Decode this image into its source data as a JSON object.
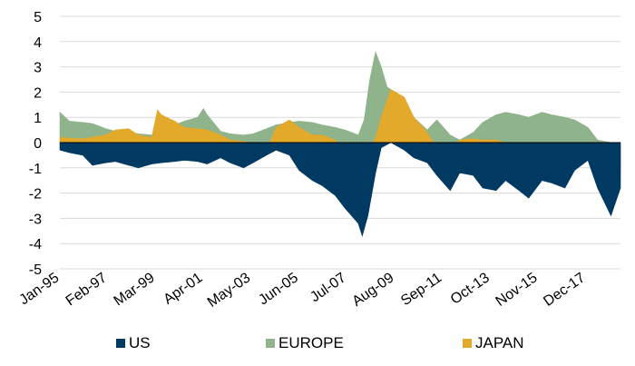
{
  "chart_data": {
    "type": "area",
    "title": "",
    "xlabel": "",
    "ylabel": "",
    "ylim": [
      -5,
      5
    ],
    "yticks": [
      5,
      4,
      3,
      2,
      1,
      0,
      -1,
      -2,
      -3,
      -4,
      -5
    ],
    "xlim": [
      "1995-01",
      "2019-06"
    ],
    "xticks": [
      "Jan-95",
      "Feb-97",
      "Mar-99",
      "Apr-01",
      "May-03",
      "Jun-05",
      "Jul-07",
      "Aug-09",
      "Sep-11",
      "Oct-13",
      "Nov-15",
      "Dec-17"
    ],
    "grid": true,
    "legend_position": "bottom",
    "series": [
      {
        "name": "EUROPE",
        "color": "#8fb38a",
        "points": [
          [
            "1995-01",
            1.2
          ],
          [
            "1995-06",
            0.85
          ],
          [
            "1996-01",
            0.8
          ],
          [
            "1996-06",
            0.75
          ],
          [
            "1997-01",
            0.55
          ],
          [
            "1997-06",
            0.45
          ],
          [
            "1998-01",
            0.4
          ],
          [
            "1998-06",
            0.35
          ],
          [
            "1999-01",
            0.3
          ],
          [
            "1999-06",
            0.55
          ],
          [
            "2000-01",
            0.7
          ],
          [
            "2000-06",
            0.85
          ],
          [
            "2001-01",
            1.0
          ],
          [
            "2001-04",
            1.35
          ],
          [
            "2001-06",
            1.1
          ],
          [
            "2002-01",
            0.45
          ],
          [
            "2002-06",
            0.35
          ],
          [
            "2003-01",
            0.3
          ],
          [
            "2003-06",
            0.35
          ],
          [
            "2004-01",
            0.55
          ],
          [
            "2004-06",
            0.7
          ],
          [
            "2005-01",
            0.8
          ],
          [
            "2005-06",
            0.85
          ],
          [
            "2006-01",
            0.8
          ],
          [
            "2006-06",
            0.7
          ],
          [
            "2007-01",
            0.6
          ],
          [
            "2007-06",
            0.5
          ],
          [
            "2008-01",
            0.3
          ],
          [
            "2008-04",
            0.9
          ],
          [
            "2008-07",
            2.5
          ],
          [
            "2008-10",
            3.6
          ],
          [
            "2009-01",
            3.0
          ],
          [
            "2009-04",
            2.2
          ],
          [
            "2009-08",
            2.0
          ],
          [
            "2010-01",
            1.6
          ],
          [
            "2010-06",
            1.0
          ],
          [
            "2011-01",
            0.5
          ],
          [
            "2011-06",
            0.9
          ],
          [
            "2012-01",
            0.3
          ],
          [
            "2012-06",
            0.1
          ],
          [
            "2013-01",
            0.4
          ],
          [
            "2013-06",
            0.8
          ],
          [
            "2014-01",
            1.1
          ],
          [
            "2014-06",
            1.2
          ],
          [
            "2015-01",
            1.1
          ],
          [
            "2015-06",
            1.0
          ],
          [
            "2016-01",
            1.2
          ],
          [
            "2016-06",
            1.1
          ],
          [
            "2017-01",
            1.0
          ],
          [
            "2017-06",
            0.9
          ],
          [
            "2018-01",
            0.6
          ],
          [
            "2018-06",
            0.1
          ],
          [
            "2019-01",
            0.0
          ],
          [
            "2019-06",
            0.0
          ]
        ]
      },
      {
        "name": "JAPAN",
        "color": "#e3a92b",
        "points": [
          [
            "1995-01",
            0.2
          ],
          [
            "1996-01",
            0.15
          ],
          [
            "1997-01",
            0.3
          ],
          [
            "1997-06",
            0.5
          ],
          [
            "1998-01",
            0.55
          ],
          [
            "1998-06",
            0.3
          ],
          [
            "1999-01",
            0.2
          ],
          [
            "1999-04",
            1.3
          ],
          [
            "1999-06",
            1.1
          ],
          [
            "2000-01",
            0.85
          ],
          [
            "2000-06",
            0.6
          ],
          [
            "2001-01",
            0.55
          ],
          [
            "2001-06",
            0.5
          ],
          [
            "2002-01",
            0.3
          ],
          [
            "2002-06",
            0.1
          ],
          [
            "2003-01",
            0.05
          ],
          [
            "2003-06",
            -0.05
          ],
          [
            "2004-01",
            -0.3
          ],
          [
            "2004-06",
            0.6
          ],
          [
            "2005-01",
            0.9
          ],
          [
            "2005-06",
            0.6
          ],
          [
            "2006-01",
            0.3
          ],
          [
            "2006-06",
            0.3
          ],
          [
            "2007-01",
            0.1
          ],
          [
            "2007-06",
            -0.3
          ],
          [
            "2008-01",
            -0.6
          ],
          [
            "2008-06",
            -0.4
          ],
          [
            "2008-10",
            0.2
          ],
          [
            "2009-01",
            1.0
          ],
          [
            "2009-06",
            2.1
          ],
          [
            "2010-01",
            1.8
          ],
          [
            "2010-06",
            1.0
          ],
          [
            "2011-01",
            0.4
          ],
          [
            "2011-06",
            -0.2
          ],
          [
            "2012-01",
            -0.3
          ],
          [
            "2012-06",
            0.1
          ],
          [
            "2013-01",
            0.15
          ],
          [
            "2013-06",
            0.1
          ],
          [
            "2014-01",
            0.1
          ],
          [
            "2014-06",
            0.0
          ],
          [
            "2015-01",
            -0.3
          ],
          [
            "2015-06",
            -0.6
          ],
          [
            "2016-01",
            -0.9
          ],
          [
            "2016-06",
            -0.8
          ],
          [
            "2017-01",
            -0.6
          ],
          [
            "2017-06",
            -0.4
          ],
          [
            "2018-01",
            -0.5
          ],
          [
            "2018-06",
            -0.7
          ],
          [
            "2019-01",
            -0.9
          ],
          [
            "2019-06",
            -1.2
          ]
        ]
      },
      {
        "name": "US",
        "color": "#003a63",
        "points": [
          [
            "1995-01",
            -0.3
          ],
          [
            "1995-06",
            -0.4
          ],
          [
            "1996-01",
            -0.5
          ],
          [
            "1996-06",
            -0.9
          ],
          [
            "1997-01",
            -0.8
          ],
          [
            "1997-06",
            -0.75
          ],
          [
            "1998-01",
            -0.9
          ],
          [
            "1998-06",
            -1.0
          ],
          [
            "1999-01",
            -0.85
          ],
          [
            "1999-06",
            -0.8
          ],
          [
            "2000-01",
            -0.75
          ],
          [
            "2000-06",
            -0.7
          ],
          [
            "2001-01",
            -0.75
          ],
          [
            "2001-06",
            -0.85
          ],
          [
            "2002-01",
            -0.6
          ],
          [
            "2002-06",
            -0.8
          ],
          [
            "2003-01",
            -1.0
          ],
          [
            "2003-06",
            -0.8
          ],
          [
            "2004-01",
            -0.5
          ],
          [
            "2004-06",
            -0.3
          ],
          [
            "2005-01",
            -0.5
          ],
          [
            "2005-06",
            -1.1
          ],
          [
            "2006-01",
            -1.5
          ],
          [
            "2006-06",
            -1.7
          ],
          [
            "2007-01",
            -2.1
          ],
          [
            "2007-06",
            -2.6
          ],
          [
            "2008-01",
            -3.2
          ],
          [
            "2008-03",
            -3.7
          ],
          [
            "2008-06",
            -2.9
          ],
          [
            "2008-10",
            -1.2
          ],
          [
            "2009-01",
            -0.2
          ],
          [
            "2009-06",
            0.0
          ],
          [
            "2010-01",
            -0.3
          ],
          [
            "2010-06",
            -0.6
          ],
          [
            "2011-01",
            -0.8
          ],
          [
            "2011-06",
            -1.3
          ],
          [
            "2012-01",
            -1.9
          ],
          [
            "2012-06",
            -1.2
          ],
          [
            "2013-01",
            -1.3
          ],
          [
            "2013-06",
            -1.8
          ],
          [
            "2014-01",
            -1.9
          ],
          [
            "2014-06",
            -1.5
          ],
          [
            "2015-01",
            -1.9
          ],
          [
            "2015-06",
            -2.2
          ],
          [
            "2016-01",
            -1.5
          ],
          [
            "2016-06",
            -1.6
          ],
          [
            "2017-01",
            -1.8
          ],
          [
            "2017-06",
            -1.1
          ],
          [
            "2018-01",
            -0.7
          ],
          [
            "2018-06",
            -1.8
          ],
          [
            "2019-01",
            -2.9
          ],
          [
            "2019-06",
            -1.8
          ]
        ]
      }
    ],
    "legend": [
      {
        "name": "US",
        "color": "#003a63"
      },
      {
        "name": "EUROPE",
        "color": "#8fb38a"
      },
      {
        "name": "JAPAN",
        "color": "#e3a92b"
      }
    ]
  }
}
